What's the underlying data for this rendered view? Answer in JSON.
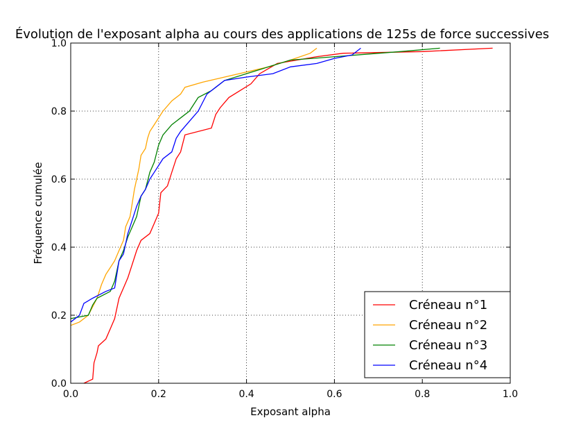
{
  "chart_data": {
    "type": "line",
    "title": "Évolution de l'exposant alpha au cours des applications de 125s de force successives",
    "xlabel": "Exposant alpha",
    "ylabel": "Fréquence cumulée",
    "xlim": [
      0.0,
      1.0
    ],
    "ylim": [
      0.0,
      1.0
    ],
    "xticks": [
      "0.0",
      "0.2",
      "0.4",
      "0.6",
      "0.8",
      "1.0"
    ],
    "yticks": [
      "0.0",
      "0.2",
      "0.4",
      "0.6",
      "0.8",
      "1.0"
    ],
    "grid": true,
    "legend_position": "lower-right",
    "series": [
      {
        "name": "Créneau n°1",
        "color": "#ff0000",
        "points": [
          [
            0.03,
            0.0
          ],
          [
            0.05,
            0.012
          ],
          [
            0.053,
            0.06
          ],
          [
            0.06,
            0.09
          ],
          [
            0.063,
            0.11
          ],
          [
            0.08,
            0.13
          ],
          [
            0.09,
            0.16
          ],
          [
            0.1,
            0.19
          ],
          [
            0.11,
            0.25
          ],
          [
            0.12,
            0.28
          ],
          [
            0.13,
            0.31
          ],
          [
            0.14,
            0.35
          ],
          [
            0.15,
            0.39
          ],
          [
            0.16,
            0.42
          ],
          [
            0.18,
            0.44
          ],
          [
            0.19,
            0.47
          ],
          [
            0.2,
            0.5
          ],
          [
            0.205,
            0.56
          ],
          [
            0.22,
            0.58
          ],
          [
            0.23,
            0.62
          ],
          [
            0.24,
            0.66
          ],
          [
            0.25,
            0.68
          ],
          [
            0.26,
            0.73
          ],
          [
            0.32,
            0.75
          ],
          [
            0.33,
            0.79
          ],
          [
            0.34,
            0.81
          ],
          [
            0.36,
            0.84
          ],
          [
            0.41,
            0.88
          ],
          [
            0.43,
            0.91
          ],
          [
            0.47,
            0.94
          ],
          [
            0.56,
            0.96
          ],
          [
            0.62,
            0.97
          ],
          [
            0.8,
            0.975
          ],
          [
            0.96,
            0.985
          ]
        ]
      },
      {
        "name": "Créneau n°2",
        "color": "#ffa500",
        "points": [
          [
            0.0,
            0.17
          ],
          [
            0.02,
            0.18
          ],
          [
            0.04,
            0.2
          ],
          [
            0.06,
            0.25
          ],
          [
            0.07,
            0.29
          ],
          [
            0.08,
            0.32
          ],
          [
            0.09,
            0.34
          ],
          [
            0.1,
            0.36
          ],
          [
            0.11,
            0.39
          ],
          [
            0.12,
            0.42
          ],
          [
            0.125,
            0.46
          ],
          [
            0.135,
            0.49
          ],
          [
            0.14,
            0.53
          ],
          [
            0.145,
            0.57
          ],
          [
            0.15,
            0.6
          ],
          [
            0.155,
            0.63
          ],
          [
            0.16,
            0.67
          ],
          [
            0.17,
            0.69
          ],
          [
            0.175,
            0.72
          ],
          [
            0.18,
            0.74
          ],
          [
            0.19,
            0.76
          ],
          [
            0.2,
            0.78
          ],
          [
            0.21,
            0.8
          ],
          [
            0.23,
            0.83
          ],
          [
            0.25,
            0.85
          ],
          [
            0.26,
            0.87
          ],
          [
            0.3,
            0.885
          ],
          [
            0.35,
            0.9
          ],
          [
            0.45,
            0.93
          ],
          [
            0.5,
            0.95
          ],
          [
            0.545,
            0.97
          ],
          [
            0.56,
            0.985
          ]
        ]
      },
      {
        "name": "Créneau n°3",
        "color": "#008000",
        "points": [
          [
            0.0,
            0.19
          ],
          [
            0.04,
            0.2
          ],
          [
            0.05,
            0.23
          ],
          [
            0.06,
            0.25
          ],
          [
            0.09,
            0.27
          ],
          [
            0.1,
            0.3
          ],
          [
            0.11,
            0.36
          ],
          [
            0.12,
            0.39
          ],
          [
            0.13,
            0.43
          ],
          [
            0.14,
            0.46
          ],
          [
            0.15,
            0.49
          ],
          [
            0.16,
            0.55
          ],
          [
            0.17,
            0.57
          ],
          [
            0.18,
            0.62
          ],
          [
            0.19,
            0.65
          ],
          [
            0.2,
            0.7
          ],
          [
            0.21,
            0.73
          ],
          [
            0.23,
            0.76
          ],
          [
            0.25,
            0.78
          ],
          [
            0.27,
            0.8
          ],
          [
            0.29,
            0.84
          ],
          [
            0.32,
            0.86
          ],
          [
            0.35,
            0.89
          ],
          [
            0.4,
            0.91
          ],
          [
            0.45,
            0.93
          ],
          [
            0.5,
            0.95
          ],
          [
            0.55,
            0.955
          ],
          [
            0.65,
            0.965
          ],
          [
            0.75,
            0.975
          ],
          [
            0.84,
            0.985
          ]
        ]
      },
      {
        "name": "Créneau n°4",
        "color": "#0000ff",
        "points": [
          [
            0.0,
            0.18
          ],
          [
            0.02,
            0.2
          ],
          [
            0.03,
            0.235
          ],
          [
            0.05,
            0.25
          ],
          [
            0.08,
            0.27
          ],
          [
            0.1,
            0.28
          ],
          [
            0.11,
            0.36
          ],
          [
            0.12,
            0.38
          ],
          [
            0.13,
            0.44
          ],
          [
            0.14,
            0.48
          ],
          [
            0.15,
            0.52
          ],
          [
            0.16,
            0.55
          ],
          [
            0.17,
            0.57
          ],
          [
            0.18,
            0.6
          ],
          [
            0.19,
            0.62
          ],
          [
            0.2,
            0.64
          ],
          [
            0.21,
            0.66
          ],
          [
            0.23,
            0.68
          ],
          [
            0.24,
            0.72
          ],
          [
            0.25,
            0.74
          ],
          [
            0.27,
            0.77
          ],
          [
            0.29,
            0.8
          ],
          [
            0.31,
            0.85
          ],
          [
            0.33,
            0.87
          ],
          [
            0.35,
            0.89
          ],
          [
            0.4,
            0.9
          ],
          [
            0.46,
            0.91
          ],
          [
            0.5,
            0.93
          ],
          [
            0.56,
            0.94
          ],
          [
            0.6,
            0.955
          ],
          [
            0.64,
            0.965
          ],
          [
            0.66,
            0.985
          ]
        ]
      }
    ]
  }
}
